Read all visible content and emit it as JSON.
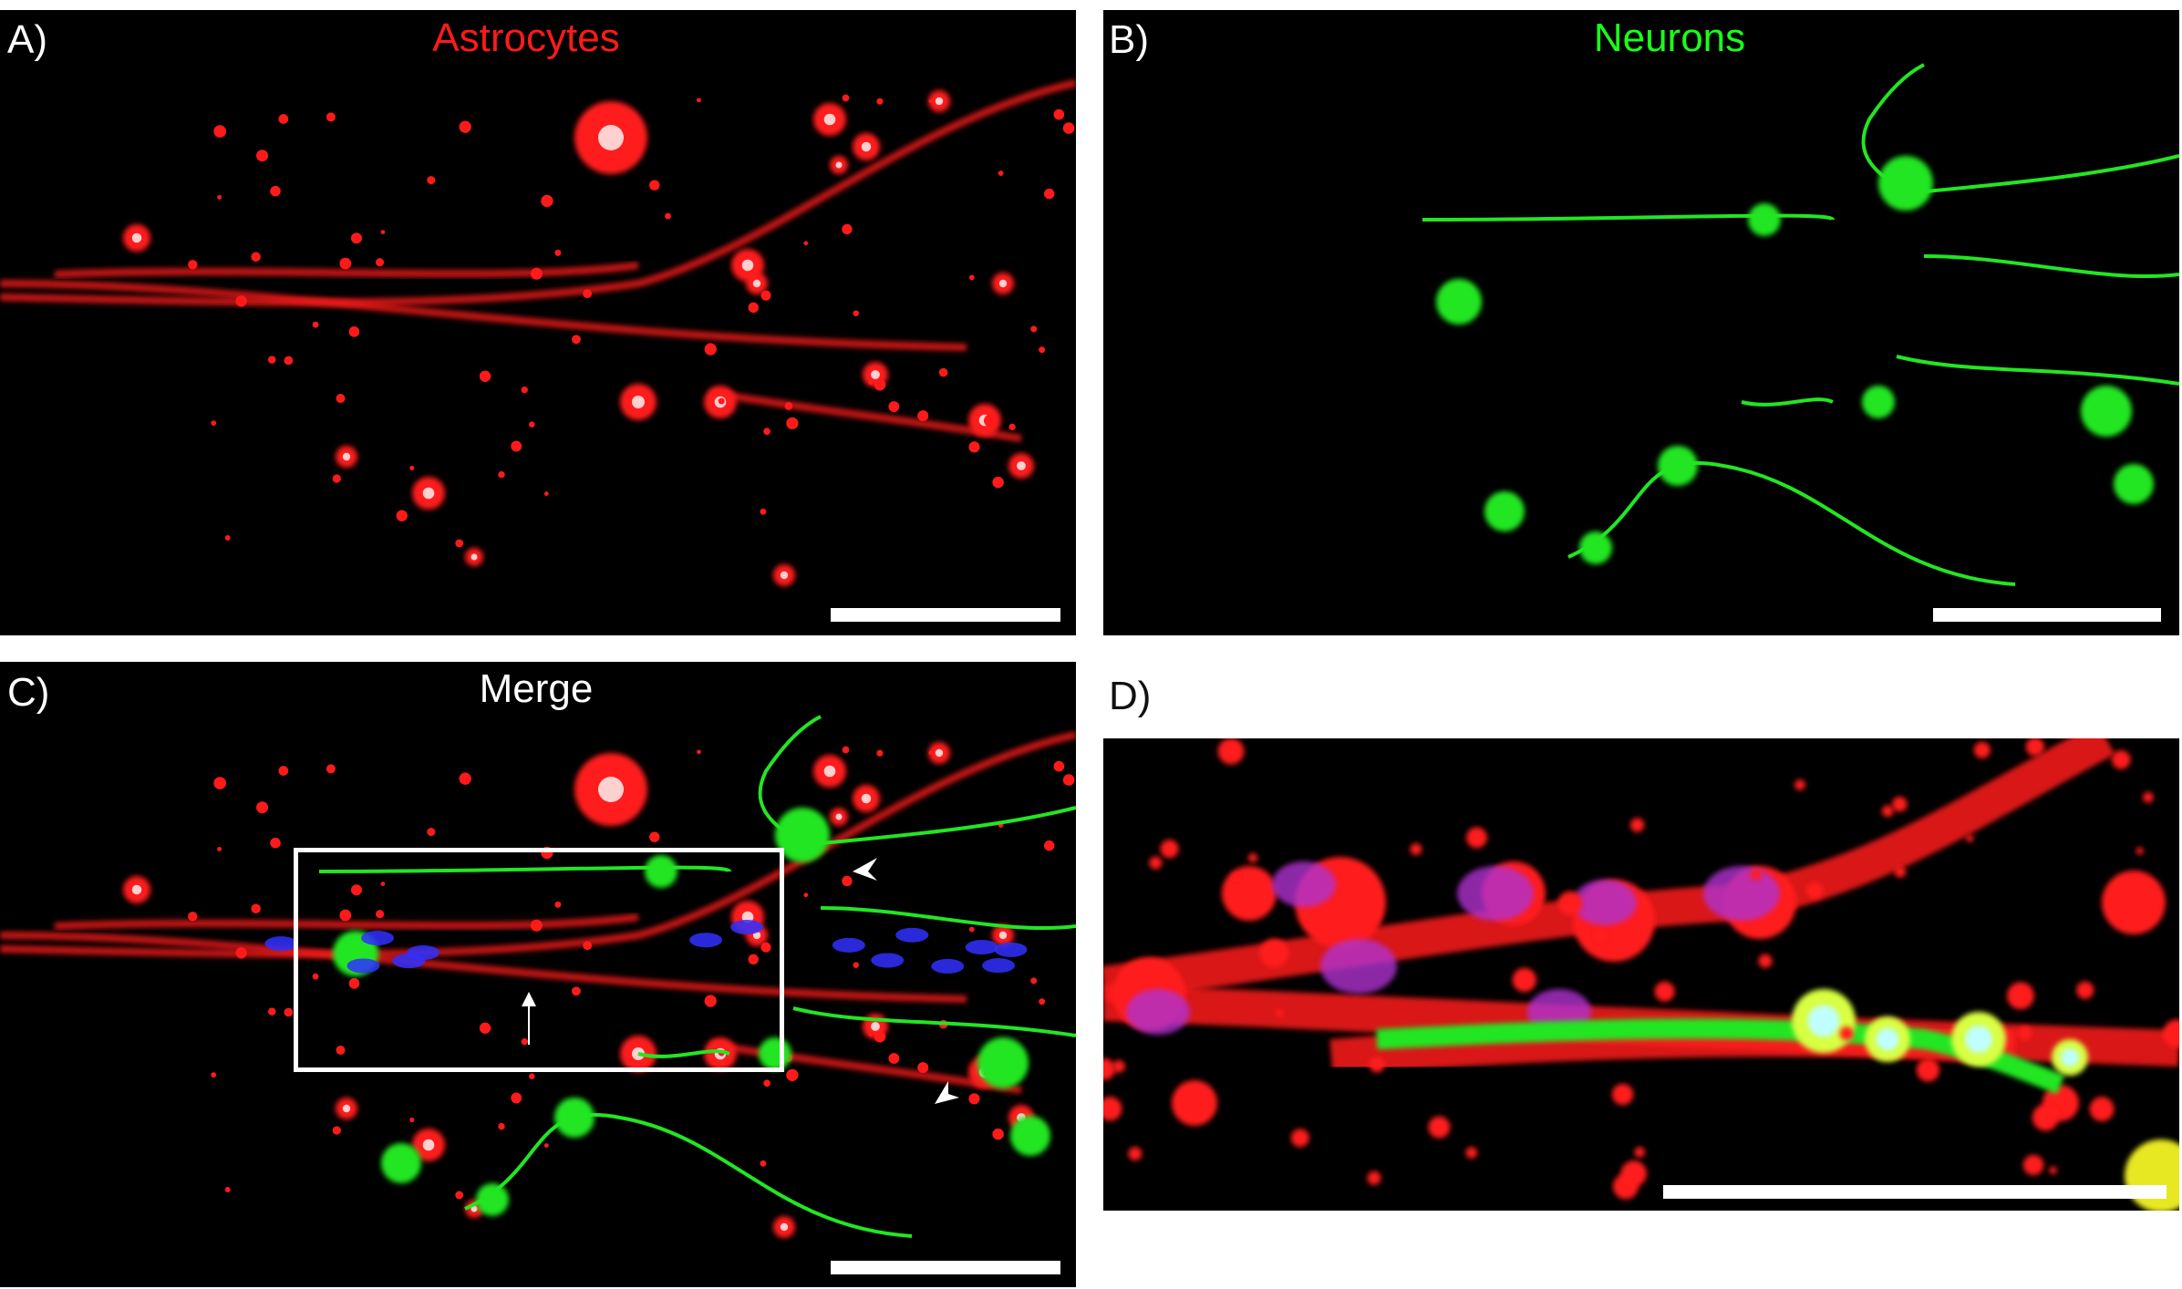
{
  "figure": {
    "panels": [
      {
        "label": "A)",
        "title": "Astrocytes",
        "title_color": "#ff1a1a",
        "channel": "red"
      },
      {
        "label": "B)",
        "title": "Neurons",
        "title_color": "#1aff1a",
        "channel": "green"
      },
      {
        "label": "C)",
        "title": "Merge",
        "title_color": "#ffffff",
        "channel": "merge"
      },
      {
        "label": "D)",
        "title": "",
        "channel": "merge-zoom"
      }
    ],
    "colors": {
      "astrocyte": "#ff1a1a",
      "neuron": "#22e622",
      "nucleus": "#3030ff",
      "background": "#000000",
      "scale_bar": "#ffffff"
    },
    "annotations": [
      "inset-box",
      "arrow",
      "arrowhead",
      "arrowhead"
    ]
  }
}
